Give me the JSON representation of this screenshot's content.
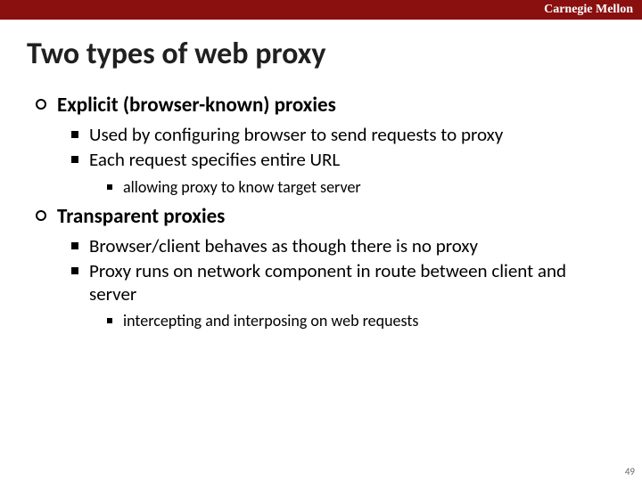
{
  "brand_bar_color": "#8a0f0f",
  "brand_text": "Carnegie Mellon",
  "title_color": "#202020",
  "title": "Two types of web proxy",
  "text_color": "#000000",
  "page_number": "49",
  "outline": [
    {
      "text": "Explicit (browser-known) proxies",
      "sub": [
        {
          "text": "Used by configuring browser to send requests to proxy"
        },
        {
          "text": "Each request specifies entire URL",
          "sub": [
            {
              "text": "allowing proxy to know target server"
            }
          ]
        }
      ]
    },
    {
      "text": "Transparent proxies",
      "sub": [
        {
          "text": "Browser/client behaves as though there is no proxy"
        },
        {
          "text": "Proxy runs on network component in route between client and server",
          "sub": [
            {
              "text": "intercepting and interposing on web requests"
            }
          ]
        }
      ]
    }
  ]
}
